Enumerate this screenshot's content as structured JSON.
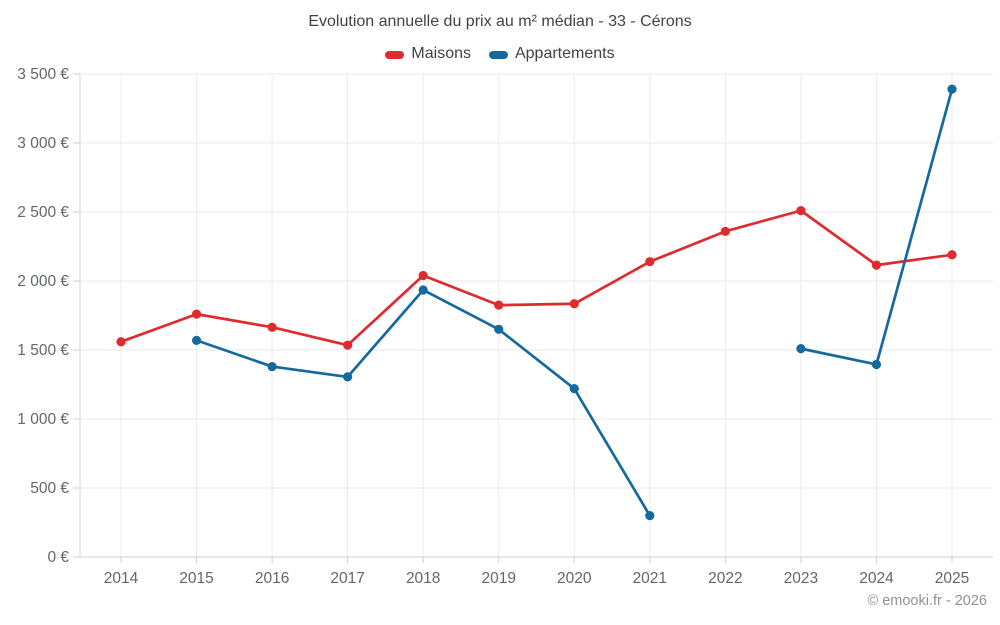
{
  "title": "Evolution annuelle du prix au m² médian - 33 - Cérons",
  "legend": {
    "items": [
      {
        "label": "Maisons",
        "color": "#df2b2e"
      },
      {
        "label": "Appartements",
        "color": "#15699f"
      }
    ]
  },
  "footer": {
    "copyright": "© emooki.fr - 2026"
  },
  "chart_data": {
    "type": "line",
    "title": "Evolution annuelle du prix au m² médian - 33 - Cérons",
    "categories": [
      "2014",
      "2015",
      "2016",
      "2017",
      "2018",
      "2019",
      "2020",
      "2021",
      "2022",
      "2023",
      "2024",
      "2025"
    ],
    "series": [
      {
        "name": "Maisons",
        "color": "#df2b2e",
        "values": [
          1560,
          1760,
          1665,
          1535,
          2040,
          1825,
          1835,
          2140,
          2360,
          2510,
          2115,
          2190
        ]
      },
      {
        "name": "Appartements",
        "color": "#15699f",
        "values": [
          null,
          1570,
          1380,
          1305,
          1935,
          1650,
          1220,
          300,
          null,
          1510,
          1395,
          3390
        ]
      }
    ],
    "xlabel": "",
    "ylabel": "",
    "ylim": [
      0,
      3500
    ],
    "y_ticks": [
      0,
      500,
      1000,
      1500,
      2000,
      2500,
      3000,
      3500
    ],
    "y_tick_labels": [
      "0 €",
      "500 €",
      "1 000 €",
      "1 500 €",
      "2 000 €",
      "2 500 €",
      "3 000 €",
      "3 500 €"
    ],
    "grid": true,
    "legend_position": "top",
    "marker": "circle",
    "currency": "€"
  }
}
